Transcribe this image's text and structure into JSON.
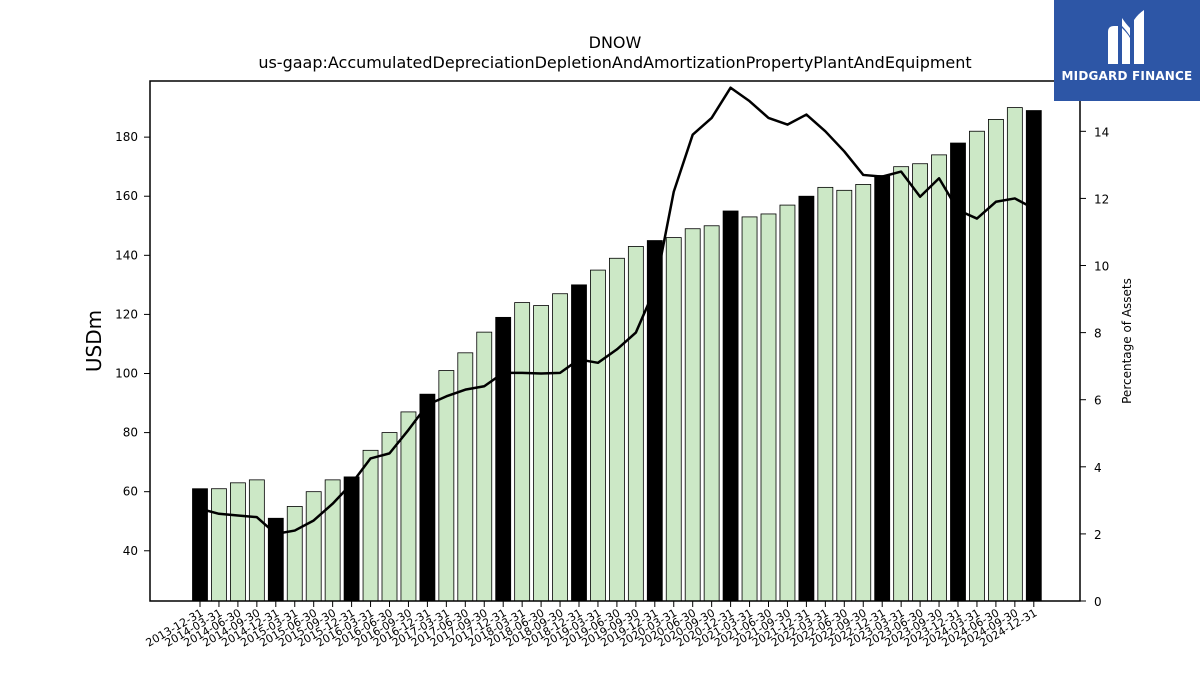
{
  "chart_data": {
    "type": "bar",
    "title": "DNOW",
    "subtitle": "us-gaap:AccumulatedDepreciationDepletionAndAmortizationPropertyPlantAndEquipment",
    "ylabel": "USDm",
    "ylabel_right": "Percentage of Assets",
    "ylim": [
      23,
      199
    ],
    "ylim_right": [
      0,
      15.5
    ],
    "yticks": [
      40,
      60,
      80,
      100,
      120,
      140,
      160,
      180
    ],
    "yticks_right": [
      0,
      2,
      4,
      6,
      8,
      10,
      12,
      14
    ],
    "categories": [
      "2013-12-31",
      "2014-03-31",
      "2014-06-30",
      "2014-09-30",
      "2014-12-31",
      "2015-03-31",
      "2015-06-30",
      "2015-09-30",
      "2015-12-31",
      "2016-03-31",
      "2016-06-30",
      "2016-09-30",
      "2016-12-31",
      "2017-03-31",
      "2017-06-30",
      "2017-09-30",
      "2017-12-31",
      "2018-03-31",
      "2018-06-30",
      "2018-09-30",
      "2018-12-31",
      "2019-03-31",
      "2019-06-30",
      "2019-09-30",
      "2019-12-31",
      "2020-03-31",
      "2020-06-30",
      "2020-09-30",
      "2020-12-31",
      "2021-03-31",
      "2021-06-30",
      "2021-09-30",
      "2021-12-31",
      "2022-03-31",
      "2022-06-30",
      "2022-09-30",
      "2022-12-31",
      "2023-03-31",
      "2023-06-30",
      "2023-09-30",
      "2023-12-31",
      "2024-03-31",
      "2024-06-30",
      "2024-09-30",
      "2024-12-31"
    ],
    "series": [
      {
        "type": "bar",
        "values": [
          61,
          61,
          63,
          64,
          51,
          55,
          60,
          64,
          65,
          74,
          80,
          87,
          93,
          101,
          107,
          114,
          119,
          124,
          123,
          127,
          130,
          135,
          139,
          143,
          145,
          146,
          149,
          150,
          155,
          153,
          154,
          157,
          160,
          163,
          162,
          164,
          167,
          170,
          171,
          174,
          178,
          182,
          186,
          190,
          189
        ],
        "annual_color": "#000000",
        "quarterly_color": "#cce8c6"
      },
      {
        "type": "line",
        "axis": "right",
        "values": [
          2.75,
          2.6,
          2.55,
          2.5,
          2.0,
          2.1,
          2.4,
          2.9,
          3.5,
          4.25,
          4.4,
          5.1,
          5.85,
          6.1,
          6.3,
          6.4,
          6.8,
          6.8,
          6.78,
          6.8,
          7.2,
          7.1,
          7.5,
          8.0,
          9.3,
          12.2,
          13.9,
          14.4,
          15.3,
          14.9,
          14.4,
          14.2,
          14.5,
          14.0,
          13.4,
          12.7,
          12.65,
          12.8,
          12.05,
          12.6,
          11.65,
          11.4,
          11.9,
          12.0,
          11.7
        ],
        "color": "#000000"
      }
    ],
    "grid": false
  },
  "logo": {
    "text": "MIDGARD FINANCE",
    "bg": "#2d56a6"
  }
}
